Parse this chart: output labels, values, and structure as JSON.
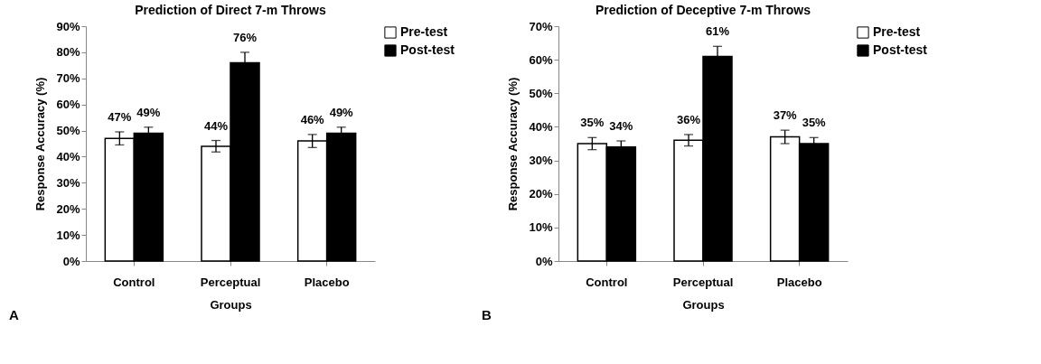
{
  "chart_data": [
    {
      "type": "bar",
      "title": "Prediction of Direct 7-m Throws",
      "xlabel": "Groups",
      "ylabel": "Response Accuracy (%)",
      "categories": [
        "Control",
        "Perceptual",
        "Placebo"
      ],
      "series": [
        {
          "name": "Pre-test",
          "color": "#ffffff",
          "values": [
            47,
            44,
            46
          ],
          "errors": [
            2.5,
            2.2,
            2.5
          ],
          "value_labels": [
            "47%",
            "44%",
            "46%"
          ]
        },
        {
          "name": "Post-test",
          "color": "#000000",
          "values": [
            49,
            76,
            49
          ],
          "errors": [
            2.3,
            4,
            2.3
          ],
          "value_labels": [
            "49%",
            "76%",
            "49%"
          ]
        }
      ],
      "ylim": [
        0,
        90
      ],
      "yticks": [
        {
          "value": 0,
          "label": "0%"
        },
        {
          "value": 10,
          "label": "10%"
        },
        {
          "value": 20,
          "label": "20%"
        },
        {
          "value": 30,
          "label": "30%"
        },
        {
          "value": 40,
          "label": "40%"
        },
        {
          "value": 50,
          "label": "50%"
        },
        {
          "value": 60,
          "label": "60%"
        },
        {
          "value": 70,
          "label": "70%"
        },
        {
          "value": 80,
          "label": "80%"
        },
        {
          "value": 90,
          "label": "90%"
        }
      ],
      "grid": false,
      "legend": "right",
      "annotations": [
        "A"
      ]
    },
    {
      "type": "bar",
      "title": "Prediction of Deceptive 7-m Throws",
      "xlabel": "Groups",
      "ylabel": "Response Accuracy (%)",
      "categories": [
        "Control",
        "Perceptual",
        "Placebo"
      ],
      "series": [
        {
          "name": "Pre-test",
          "color": "#ffffff",
          "values": [
            35,
            36,
            37
          ],
          "errors": [
            1.8,
            1.7,
            2
          ],
          "value_labels": [
            "35%",
            "36%",
            "37%"
          ]
        },
        {
          "name": "Post-test",
          "color": "#000000",
          "values": [
            34,
            61,
            35
          ],
          "errors": [
            1.8,
            3,
            1.8
          ],
          "value_labels": [
            "34%",
            "61%",
            "35%"
          ]
        }
      ],
      "ylim": [
        0,
        70
      ],
      "yticks": [
        {
          "value": 0,
          "label": "0%"
        },
        {
          "value": 10,
          "label": "10%"
        },
        {
          "value": 20,
          "label": "20%"
        },
        {
          "value": 30,
          "label": "30%"
        },
        {
          "value": 40,
          "label": "40%"
        },
        {
          "value": 50,
          "label": "50%"
        },
        {
          "value": 60,
          "label": "60%"
        },
        {
          "value": 70,
          "label": "70%"
        }
      ],
      "grid": false,
      "legend": "right",
      "annotations": [
        "B"
      ]
    }
  ]
}
